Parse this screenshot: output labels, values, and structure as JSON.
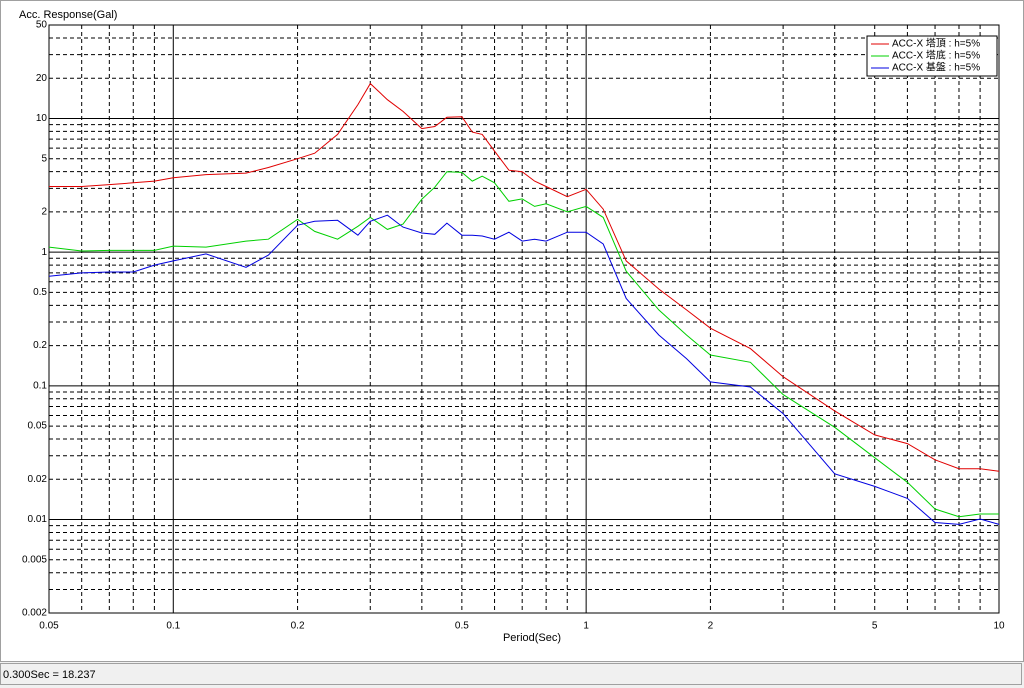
{
  "chart_data": {
    "type": "line",
    "y_label": "Acc. Response(Gal)",
    "x_label": "Period(Sec)",
    "xscale": "log",
    "yscale": "log",
    "xlim": [
      0.05,
      10
    ],
    "ylim": [
      0.002,
      50
    ],
    "xticks": [
      0.05,
      0.1,
      0.2,
      0.5,
      1,
      2,
      5,
      10
    ],
    "yticks": [
      0.002,
      0.005,
      0.01,
      0.02,
      0.05,
      0.1,
      0.2,
      0.5,
      1,
      2,
      5,
      10,
      20,
      50
    ],
    "xgrid": [
      0.06,
      0.07,
      0.08,
      0.09,
      0.1,
      0.2,
      0.3,
      0.4,
      0.5,
      0.6,
      0.7,
      0.8,
      0.9,
      1,
      2,
      3,
      4,
      5,
      6,
      7,
      8,
      9
    ],
    "ygrid": [
      0.003,
      0.004,
      0.005,
      0.006,
      0.007,
      0.008,
      0.009,
      0.01,
      0.02,
      0.03,
      0.04,
      0.05,
      0.06,
      0.07,
      0.08,
      0.09,
      0.1,
      0.2,
      0.3,
      0.4,
      0.5,
      0.6,
      0.7,
      0.8,
      0.9,
      1,
      2,
      3,
      4,
      5,
      6,
      7,
      8,
      9,
      10,
      20,
      30,
      40
    ],
    "legend": "upper right",
    "x": [
      0.05,
      0.06,
      0.07,
      0.08,
      0.09,
      0.1,
      0.12,
      0.15,
      0.17,
      0.2,
      0.22,
      0.25,
      0.28,
      0.3,
      0.33,
      0.36,
      0.4,
      0.43,
      0.46,
      0.5,
      0.53,
      0.56,
      0.6,
      0.65,
      0.7,
      0.75,
      0.8,
      0.9,
      1,
      1.1,
      1.25,
      1.5,
      1.75,
      2,
      2.5,
      3,
      4,
      5,
      6,
      7,
      8,
      9,
      10
    ],
    "series": [
      {
        "name": "ACC-X 塔頂 : h=5%",
        "color": "#e00000",
        "values": [
          3.1,
          3.1,
          3.2,
          3.3,
          3.4,
          3.6,
          3.8,
          3.9,
          4.3,
          5.0,
          5.5,
          7.6,
          12.7,
          18.237,
          13.8,
          11.3,
          8.4,
          8.7,
          10.2,
          10.3,
          7.9,
          7.6,
          5.7,
          4.1,
          4.0,
          3.4,
          3.1,
          2.6,
          2.95,
          2.1,
          0.86,
          0.53,
          0.37,
          0.27,
          0.19,
          0.117,
          0.065,
          0.043,
          0.037,
          0.028,
          0.024,
          0.024,
          0.023
        ]
      },
      {
        "name": "ACC-X 塔底 : h=5%",
        "color": "#00d000",
        "values": [
          1.09,
          1.02,
          1.03,
          1.03,
          1.03,
          1.11,
          1.09,
          1.21,
          1.25,
          1.76,
          1.43,
          1.25,
          1.56,
          1.82,
          1.48,
          1.62,
          2.49,
          3.06,
          4.0,
          3.95,
          3.4,
          3.7,
          3.3,
          2.4,
          2.5,
          2.2,
          2.3,
          2.0,
          2.2,
          1.82,
          0.72,
          0.37,
          0.24,
          0.17,
          0.15,
          0.086,
          0.049,
          0.029,
          0.019,
          0.012,
          0.0105,
          0.011,
          0.011
        ]
      },
      {
        "name": "ACC-X 基盤 : h=5%",
        "color": "#0000e0",
        "values": [
          0.66,
          0.7,
          0.71,
          0.71,
          0.8,
          0.86,
          0.97,
          0.77,
          0.95,
          1.59,
          1.7,
          1.73,
          1.34,
          1.7,
          1.89,
          1.54,
          1.39,
          1.36,
          1.65,
          1.34,
          1.34,
          1.32,
          1.25,
          1.41,
          1.21,
          1.25,
          1.21,
          1.41,
          1.41,
          1.15,
          0.45,
          0.24,
          0.16,
          0.107,
          0.098,
          0.062,
          0.022,
          0.0177,
          0.0144,
          0.0095,
          0.0092,
          0.0101,
          0.0092
        ]
      }
    ]
  },
  "status_bar": {
    "text": "0.300Sec = 18.237"
  }
}
